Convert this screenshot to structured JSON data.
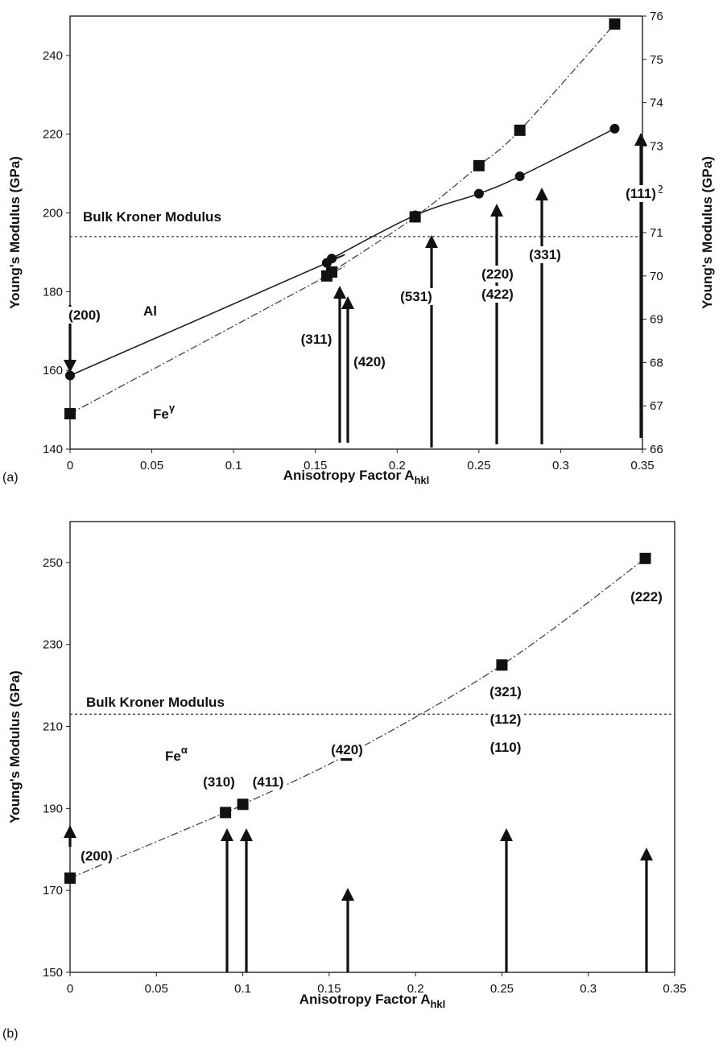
{
  "chart_data": [
    {
      "panel": "(a)",
      "type": "line",
      "xlabel": "Anisotropy Factor A",
      "xlabel_sub": "hkl",
      "ylabel": "Young's Modulus (GPa)",
      "ylabel_right": "Young's Modulus (GPa)",
      "xlim": [
        0,
        0.35
      ],
      "ylim": [
        140,
        250
      ],
      "ylim_right": [
        66,
        76
      ],
      "x_ticks": [
        0,
        0.05,
        0.1,
        0.15,
        0.2,
        0.25,
        0.3,
        0.35
      ],
      "y_ticks": [
        140,
        160,
        180,
        200,
        220,
        240
      ],
      "y_ticks_right": [
        66,
        67,
        68,
        69,
        70,
        71,
        72,
        73,
        74,
        75,
        76
      ],
      "grid": false,
      "reference_line": {
        "label": "Bulk Kroner Modulus",
        "y": 194
      },
      "series": [
        {
          "name": "Al",
          "axis": "right",
          "marker": "circle",
          "line": "solid",
          "x": [
            0,
            0.157,
            0.16,
            0.211,
            0.25,
            0.275,
            0.333
          ],
          "y": [
            67.7,
            70.3,
            70.4,
            71.4,
            71.9,
            72.3,
            73.4
          ]
        },
        {
          "name": "Fe",
          "name_sup": "γ",
          "axis": "left",
          "marker": "square",
          "line": "dashdot",
          "x": [
            0,
            0.157,
            0.16,
            0.211,
            0.25,
            0.275,
            0.333
          ],
          "y": [
            149,
            184,
            185,
            199,
            212,
            221,
            248
          ]
        }
      ],
      "annotations": [
        {
          "text": "(200)",
          "x": 0,
          "y_text": 166
        },
        {
          "text": "(311)",
          "x": 0.157,
          "y_text": 175
        },
        {
          "text": "(420)",
          "x": 0.16,
          "y_text": 163
        },
        {
          "text": "(531)",
          "x": 0.211,
          "y_text": 180
        },
        {
          "text": "(220)",
          "x": 0.25,
          "y_text": 187
        },
        {
          "text": "(422)",
          "x": 0.25,
          "y_text": 181
        },
        {
          "text": "(331)",
          "x": 0.275,
          "y_text": 189
        },
        {
          "text": "(111)",
          "x": 0.333,
          "y_text": 207
        }
      ]
    },
    {
      "panel": "(b)",
      "type": "line",
      "xlabel": "Anisotropy Factor A",
      "xlabel_sub": "hkl",
      "ylabel": "Young's Modulus (GPa)",
      "xlim": [
        0,
        0.35
      ],
      "ylim": [
        150,
        260
      ],
      "x_ticks": [
        0,
        0.05,
        0.1,
        0.15,
        0.2,
        0.25,
        0.3,
        0.35
      ],
      "y_ticks": [
        150,
        170,
        190,
        210,
        230,
        250
      ],
      "grid": false,
      "reference_line": {
        "label": "Bulk Kroner Modulus",
        "y": 213
      },
      "series": [
        {
          "name": "Fe",
          "name_sup": "α",
          "axis": "left",
          "marker": "square",
          "line": "dashdot",
          "x": [
            0,
            0.09,
            0.1,
            0.16,
            0.25,
            0.333
          ],
          "y": [
            173,
            189,
            191,
            203,
            225,
            251
          ]
        }
      ],
      "annotations": [
        {
          "text": "(200)",
          "x": 0,
          "y_text": 157
        },
        {
          "text": "(310)",
          "x": 0.09,
          "y_text": 178
        },
        {
          "text": "(411)",
          "x": 0.1,
          "y_text": 178
        },
        {
          "text": "(420)",
          "x": 0.16,
          "y_text": 186
        },
        {
          "text": "(321)",
          "x": 0.25,
          "y_text": 207
        },
        {
          "text": "(112)",
          "x": 0.25,
          "y_text": 199
        },
        {
          "text": "(110)",
          "x": 0.25,
          "y_text": 192
        },
        {
          "text": "(222)",
          "x": 0.333,
          "y_text": 243
        }
      ]
    }
  ]
}
